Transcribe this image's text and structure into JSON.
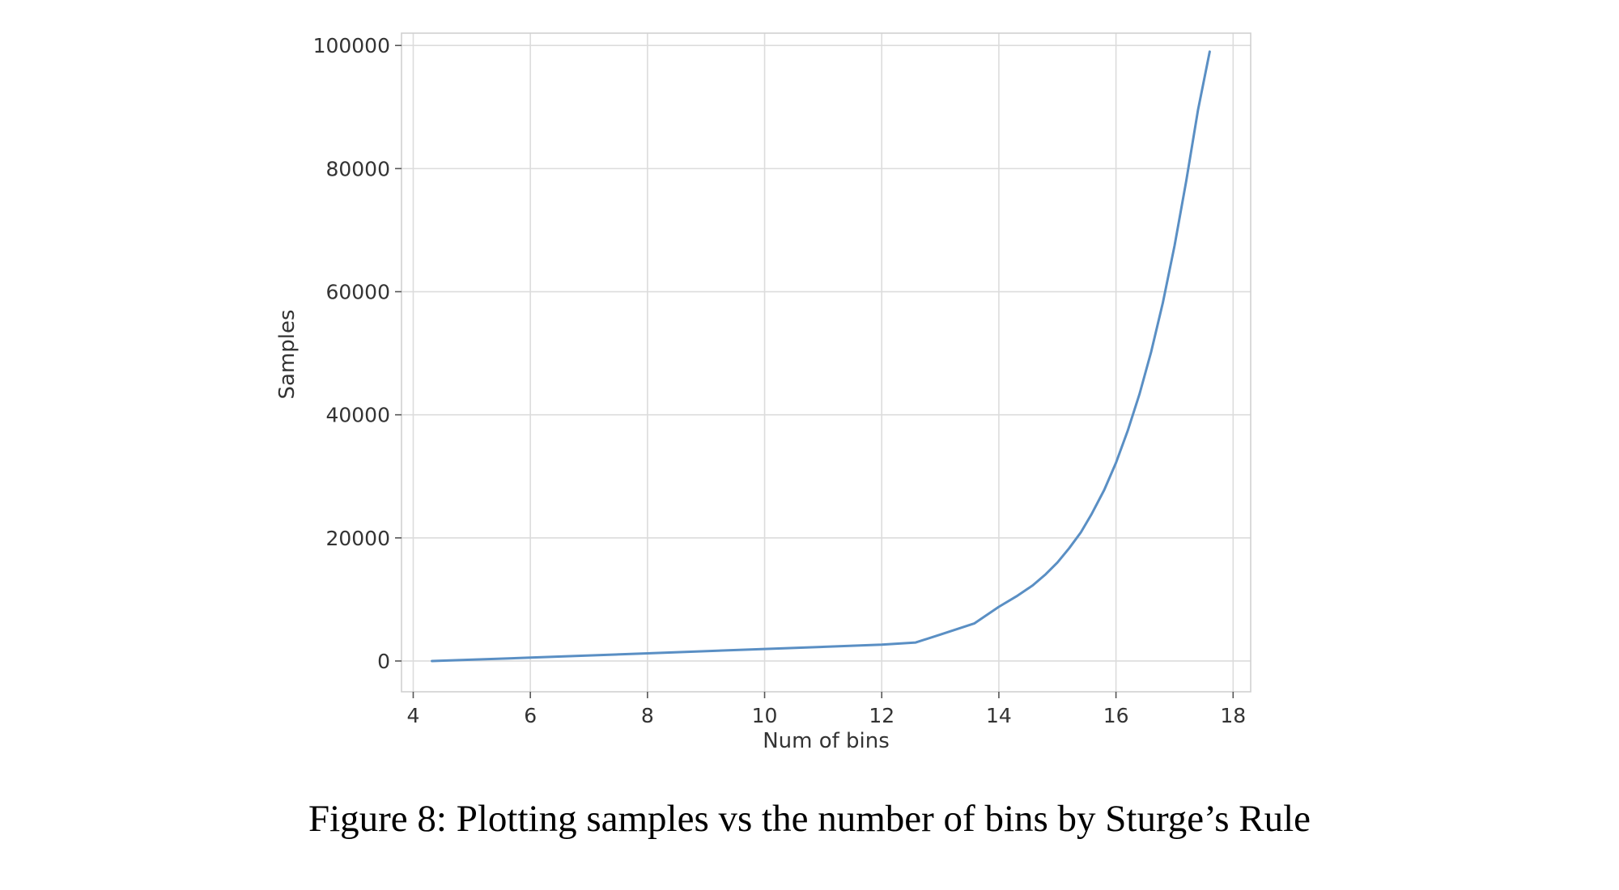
{
  "caption": "Figure 8: Plotting samples vs the number of bins by Sturge’s Rule",
  "chart_data": {
    "type": "line",
    "title": "",
    "xlabel": "Num of bins",
    "ylabel": "Samples",
    "xlim": [
      3.8,
      18.3
    ],
    "ylim": [
      -5000,
      102000
    ],
    "xticks": [
      4,
      6,
      8,
      10,
      12,
      14,
      16,
      18
    ],
    "yticks": [
      0,
      20000,
      40000,
      60000,
      80000,
      100000
    ],
    "xtick_labels": [
      "4",
      "6",
      "8",
      "10",
      "12",
      "14",
      "16",
      "18"
    ],
    "ytick_labels": [
      "0",
      "20000",
      "40000",
      "60000",
      "80000",
      "100000"
    ],
    "grid": true,
    "legend": "none",
    "series": [
      {
        "color": "#5a8fc4",
        "x": [
          4.32,
          6.0,
          8.0,
          10.0,
          12.0,
          12.58,
          13.0,
          13.58,
          14.0,
          14.3,
          14.58,
          14.8,
          15.0,
          15.2,
          15.4,
          15.58,
          15.8,
          16.0,
          16.2,
          16.4,
          16.6,
          16.8,
          17.0,
          17.2,
          17.4,
          17.6
        ],
        "y": [
          0,
          550,
          1250,
          1950,
          2650,
          3000,
          4300,
          6100,
          8800,
          10500,
          12300,
          14100,
          16000,
          18300,
          20900,
          23800,
          27800,
          32200,
          37400,
          43300,
          50200,
          58200,
          67500,
          78000,
          89500,
          99000
        ]
      }
    ]
  }
}
